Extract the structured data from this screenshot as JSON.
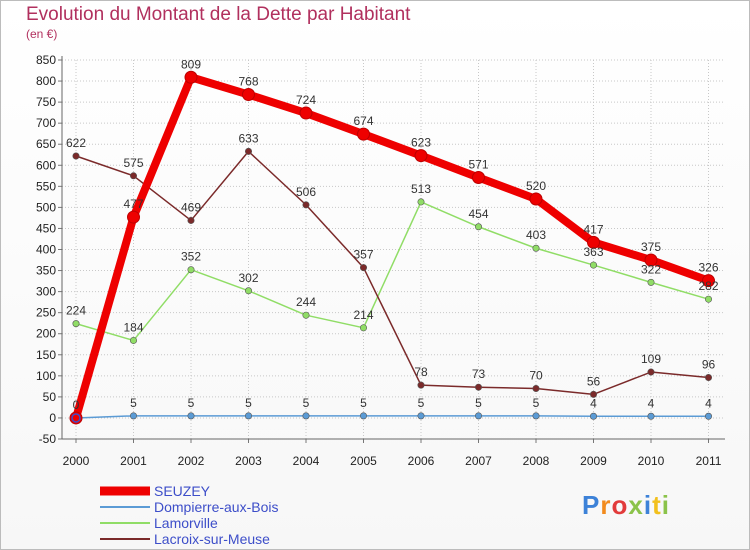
{
  "chart_data": {
    "type": "line",
    "title": "Evolution du Montant de la Dette par Habitant",
    "subtitle": "(en €)",
    "x": [
      "2000",
      "2001",
      "2002",
      "2003",
      "2004",
      "2005",
      "2006",
      "2007",
      "2008",
      "2009",
      "2010",
      "2011"
    ],
    "y_ticks": [
      -50,
      0,
      50,
      100,
      150,
      200,
      250,
      300,
      350,
      400,
      450,
      500,
      550,
      600,
      650,
      700,
      750,
      800,
      850
    ],
    "ylim": [
      -50,
      850
    ],
    "grid": true,
    "legend_position": "bottom-left",
    "series": [
      {
        "name": "SEUZEY",
        "color": "#ee0000",
        "values": [
          0,
          477,
          809,
          768,
          724,
          674,
          623,
          571,
          520,
          417,
          375,
          326
        ]
      },
      {
        "name": "Dompierre-aux-Bois",
        "color": "#5b9bd5",
        "values": [
          0,
          5,
          5,
          5,
          5,
          5,
          5,
          5,
          5,
          4,
          4,
          4
        ]
      },
      {
        "name": "Lamorville",
        "color": "#90dd66",
        "values": [
          224,
          184,
          352,
          302,
          244,
          214,
          513,
          454,
          403,
          363,
          322,
          282
        ]
      },
      {
        "name": "Lacroix-sur-Meuse",
        "color": "#7b2a2a",
        "values": [
          622,
          575,
          469,
          633,
          506,
          357,
          78,
          73,
          70,
          56,
          109,
          96
        ]
      }
    ],
    "data_labels": [
      {
        "series": 0,
        "labels": [
          "0",
          "477",
          "809",
          "768",
          "724",
          "674",
          "623",
          "571",
          "520",
          "417",
          "375",
          "326"
        ]
      },
      {
        "series": 1,
        "labels": [
          "",
          "5",
          "5",
          "5",
          "5",
          "5",
          "5",
          "5",
          "5",
          "4",
          "4",
          "4"
        ]
      },
      {
        "series": 2,
        "labels": [
          "224",
          "184",
          "352",
          "302",
          "244",
          "214",
          "513",
          "454",
          "403",
          "363",
          "322",
          "282"
        ]
      },
      {
        "series": 3,
        "labels": [
          "622",
          "575",
          "469",
          "633",
          "506",
          "357",
          "78",
          "73",
          "70",
          "56",
          "109",
          "96"
        ]
      }
    ]
  },
  "logo": [
    "P",
    "r",
    "o",
    "x",
    "i",
    "t",
    "i"
  ]
}
